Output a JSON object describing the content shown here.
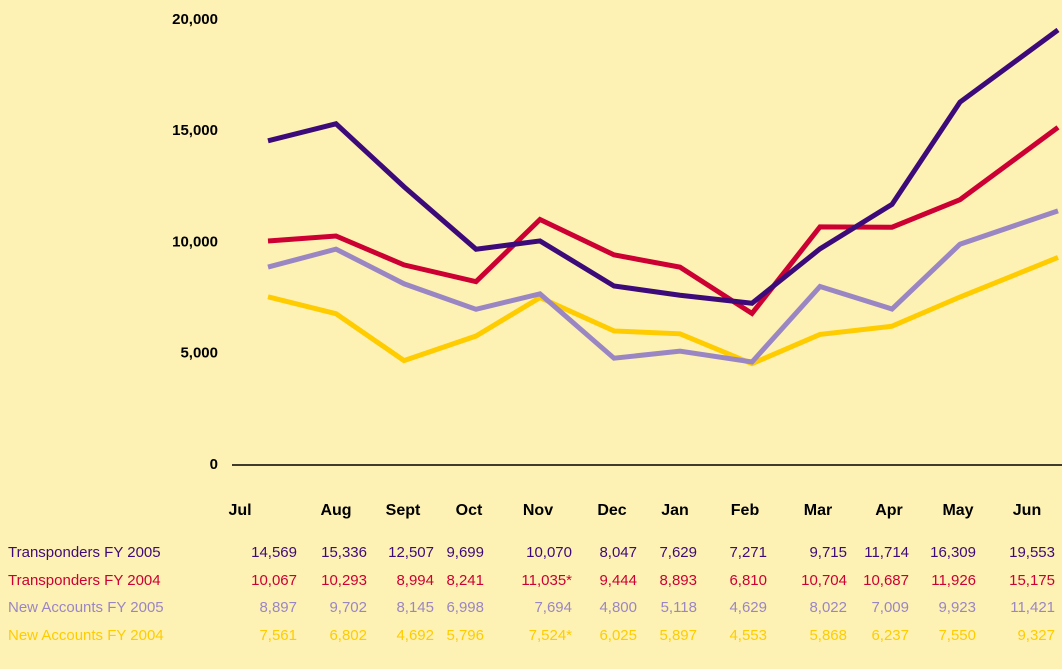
{
  "chart_data": {
    "type": "line",
    "categories": [
      "Jul",
      "Aug",
      "Sept",
      "Oct",
      "Nov",
      "Dec",
      "Jan",
      "Feb",
      "Mar",
      "Apr",
      "May",
      "Jun"
    ],
    "series": [
      {
        "name": "Transponders FY 2005",
        "color": "#3d0a7a",
        "values": [
          14569,
          15336,
          12507,
          9699,
          10070,
          8047,
          7629,
          7271,
          9715,
          11714,
          16309,
          19553
        ],
        "value_labels": [
          "14,569",
          "15,336",
          "12,507",
          "9,699",
          "10,070",
          "8,047",
          "7,629",
          "7,271",
          "9,715",
          "11,714",
          "16,309",
          "19,553"
        ]
      },
      {
        "name": "Transponders FY 2004",
        "color": "#cc0033",
        "values": [
          10067,
          10293,
          8994,
          8241,
          11035,
          9444,
          8893,
          6810,
          10704,
          10687,
          11926,
          15175
        ],
        "value_labels": [
          "10,067",
          "10,293",
          "8,994",
          "8,241",
          "11,035*",
          "9,444",
          "8,893",
          "6,810",
          "10,704",
          "10,687",
          "11,926",
          "15,175"
        ]
      },
      {
        "name": "New Accounts FY 2005",
        "color": "#9b86c4",
        "values": [
          8897,
          9702,
          8145,
          6998,
          7694,
          4800,
          5118,
          4629,
          8022,
          7009,
          9923,
          11421
        ],
        "value_labels": [
          "8,897",
          "9,702",
          "8,145",
          "6,998",
          "7,694",
          "4,800",
          "5,118",
          "4,629",
          "8,022",
          "7,009",
          "9,923",
          "11,421"
        ]
      },
      {
        "name": "New Accounts FY 2004",
        "color": "#ffcc00",
        "values": [
          7561,
          6802,
          4692,
          5796,
          7524,
          6025,
          5897,
          4553,
          5868,
          6237,
          7550,
          9327
        ],
        "value_labels": [
          "7,561",
          "6,802",
          "4,692",
          "5,796",
          "7,524*",
          "6,025",
          "5,897",
          "4,553",
          "5,868",
          "6,237",
          "7,550",
          "9,327"
        ]
      }
    ],
    "ylim": [
      0,
      20000
    ],
    "yticks": [
      0,
      {
        "value": 5000,
        "label": "5,000"
      },
      {
        "value": 10000,
        "label": "10,000"
      },
      {
        "value": 15000,
        "label": "15,000"
      },
      {
        "value": 20000,
        "label": "20,000"
      }
    ],
    "grid": false
  }
}
